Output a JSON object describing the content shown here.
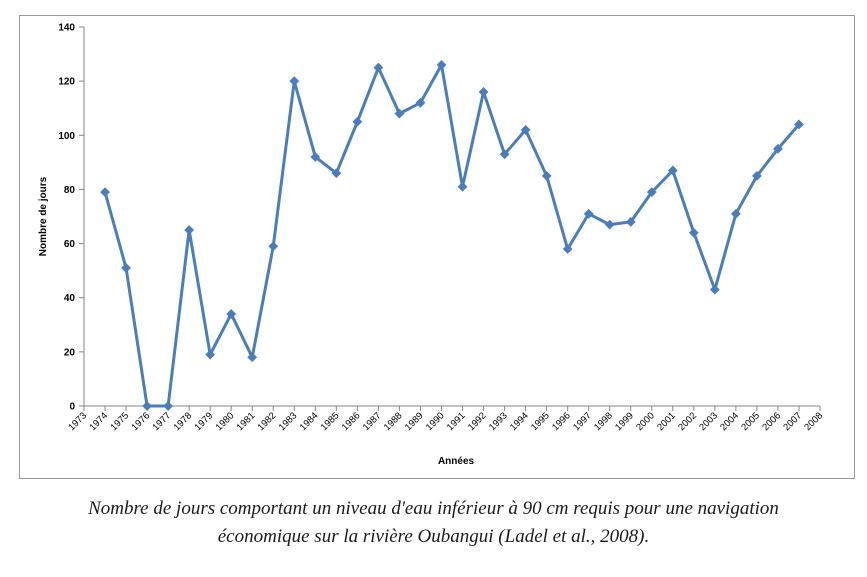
{
  "caption": {
    "line1": "Nombre de jours comportant un niveau d'eau inférieur à 90 cm requis pour une navigation",
    "line2": "économique sur la rivière Oubangui (Ladel et al., 2008)."
  },
  "chart_data": {
    "type": "line",
    "title": "",
    "xlabel": "Années",
    "ylabel": "Nombre de jours",
    "ylim": [
      0,
      140
    ],
    "yticks": [
      0,
      20,
      40,
      60,
      80,
      100,
      120,
      140
    ],
    "categories": [
      "1973",
      "1974",
      "1975",
      "1976",
      "1977",
      "1978",
      "1979",
      "1980",
      "1981",
      "1982",
      "1983",
      "1984",
      "1985",
      "1986",
      "1987",
      "1988",
      "1989",
      "1990",
      "1991",
      "1992",
      "1993",
      "1994",
      "1995",
      "1996",
      "1997",
      "1998",
      "1999",
      "2000",
      "2001",
      "2002",
      "2003",
      "2004",
      "2005",
      "2006",
      "2007",
      "2008"
    ],
    "series": [
      {
        "color": "#4a7ebb",
        "points": [
          {
            "x": "1974",
            "y": 79
          },
          {
            "x": "1975",
            "y": 51
          },
          {
            "x": "1976",
            "y": 0
          },
          {
            "x": "1977",
            "y": 0
          },
          {
            "x": "1978",
            "y": 65
          },
          {
            "x": "1979",
            "y": 19
          },
          {
            "x": "1980",
            "y": 34
          },
          {
            "x": "1981",
            "y": 18
          },
          {
            "x": "1982",
            "y": 59
          },
          {
            "x": "1983",
            "y": 120
          },
          {
            "x": "1984",
            "y": 92
          },
          {
            "x": "1985",
            "y": 86
          },
          {
            "x": "1986",
            "y": 105
          },
          {
            "x": "1987",
            "y": 125
          },
          {
            "x": "1988",
            "y": 108
          },
          {
            "x": "1989",
            "y": 112
          },
          {
            "x": "1990",
            "y": 126
          },
          {
            "x": "1991",
            "y": 81
          },
          {
            "x": "1992",
            "y": 116
          },
          {
            "x": "1993",
            "y": 93
          },
          {
            "x": "1994",
            "y": 102
          },
          {
            "x": "1995",
            "y": 85
          },
          {
            "x": "1996",
            "y": 58
          },
          {
            "x": "1997",
            "y": 71
          },
          {
            "x": "1998",
            "y": 67
          },
          {
            "x": "1999",
            "y": 68
          },
          {
            "x": "2000",
            "y": 79
          },
          {
            "x": "2001",
            "y": 87
          },
          {
            "x": "2002",
            "y": 64
          },
          {
            "x": "2003",
            "y": 43
          },
          {
            "x": "2004",
            "y": 71
          },
          {
            "x": "2005",
            "y": 85
          },
          {
            "x": "2006",
            "y": 95
          },
          {
            "x": "2007",
            "y": 104
          }
        ]
      }
    ],
    "grid": false,
    "legend": "none"
  }
}
